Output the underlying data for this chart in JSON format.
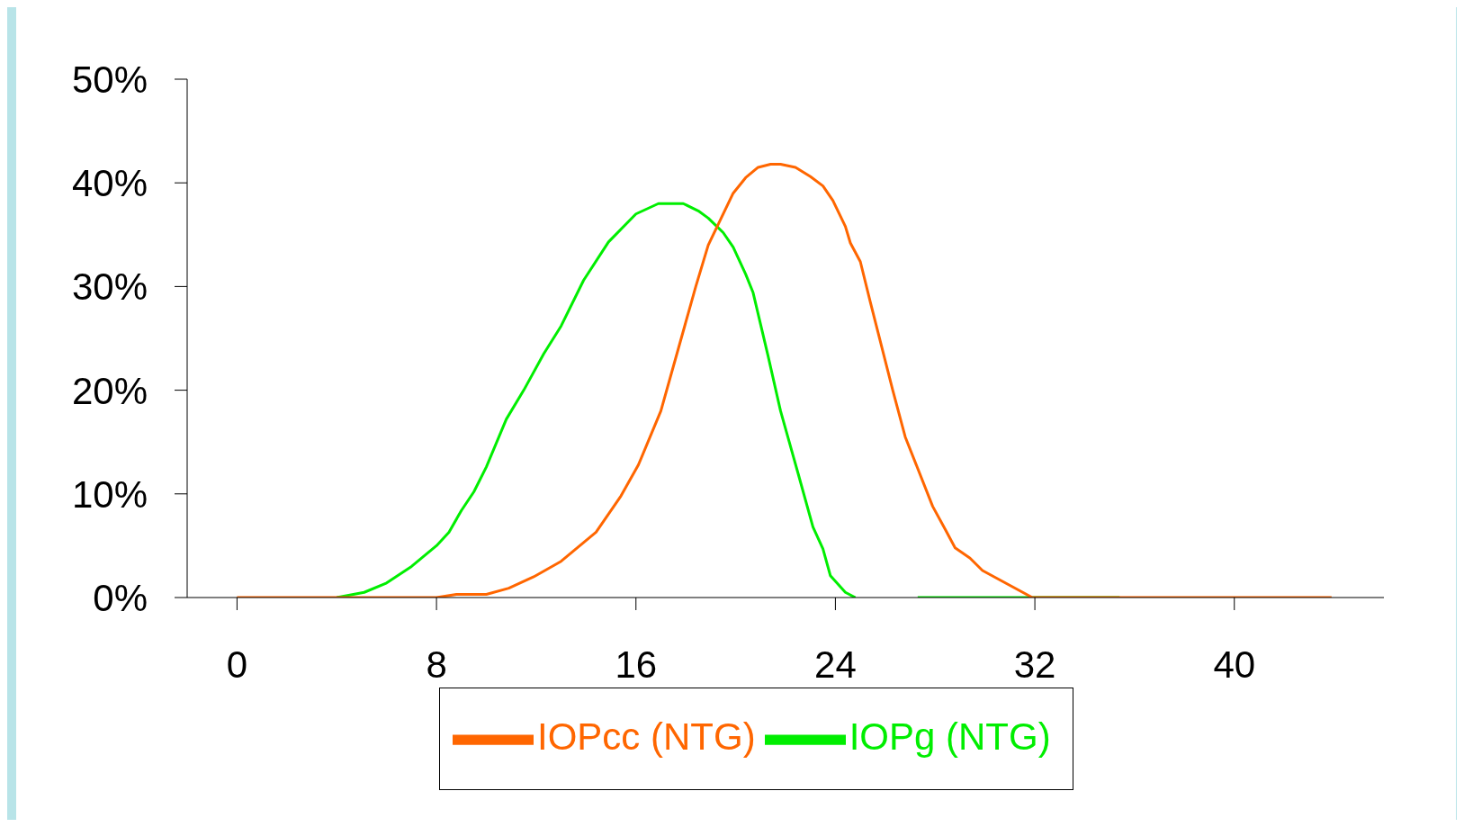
{
  "chart_data": {
    "type": "line",
    "legend": "bottom",
    "grid": false,
    "xlim": [
      -2,
      46
    ],
    "xticks": [
      0,
      8,
      16,
      24,
      32,
      40
    ],
    "ylim": [
      0,
      50
    ],
    "yticks": [
      {
        "value": 0,
        "label": "0%"
      },
      {
        "value": 10,
        "label": "10%"
      },
      {
        "value": 20,
        "label": "20%"
      },
      {
        "value": 30,
        "label": "30%"
      },
      {
        "value": 40,
        "label": "40%"
      },
      {
        "value": 50,
        "label": "50%"
      }
    ],
    "series": [
      {
        "name": "IOPg (NTG)",
        "color": "#00ee00",
        "x": [
          4,
          5.1,
          6,
          7,
          7.5,
          8,
          8.5,
          9,
          9.5,
          10,
          10.8,
          11.5,
          12.3,
          13,
          13.9,
          14.9,
          16,
          16.9,
          17.9,
          18.5,
          18.9,
          19.5,
          19.9,
          20.4,
          20.7,
          21.3,
          21.8,
          22.5,
          23.1,
          23.5,
          23.8,
          24.4,
          24.8,
          26,
          27.3,
          35.4
        ],
        "values": [
          0,
          0.5,
          1.4,
          3,
          4,
          5,
          6.3,
          8.4,
          10.2,
          12.6,
          17.2,
          20,
          23.5,
          26.2,
          30.6,
          34.3,
          37,
          38,
          38,
          37.3,
          36.6,
          35.2,
          33.8,
          31.2,
          29.4,
          23.3,
          18,
          12,
          6.8,
          4.7,
          2.1,
          0.5,
          0,
          null,
          0,
          0
        ]
      },
      {
        "name": "IOPcc (NTG)",
        "color": "#ff6600",
        "x": [
          0,
          8,
          8.8,
          10,
          10.9,
          11.9,
          13,
          14.4,
          15.4,
          16.1,
          17,
          17.7,
          18.4,
          18.9,
          19.9,
          20.4,
          20.9,
          21.4,
          21.8,
          22.4,
          23,
          23.5,
          23.9,
          24.4,
          24.6,
          25,
          25.4,
          26.3,
          26.8,
          27.9,
          28.4,
          28.8,
          29.4,
          29.9,
          31.9,
          43.9
        ],
        "values": [
          0,
          0,
          0.3,
          0.3,
          0.9,
          2,
          3.5,
          6.3,
          9.8,
          12.8,
          18,
          24,
          30,
          34,
          39,
          40.5,
          41.5,
          41.8,
          41.8,
          41.5,
          40.6,
          39.7,
          38.3,
          35.8,
          34.2,
          32.4,
          28.5,
          20,
          15.5,
          8.8,
          6.6,
          4.8,
          3.8,
          2.6,
          0,
          0
        ]
      }
    ]
  }
}
